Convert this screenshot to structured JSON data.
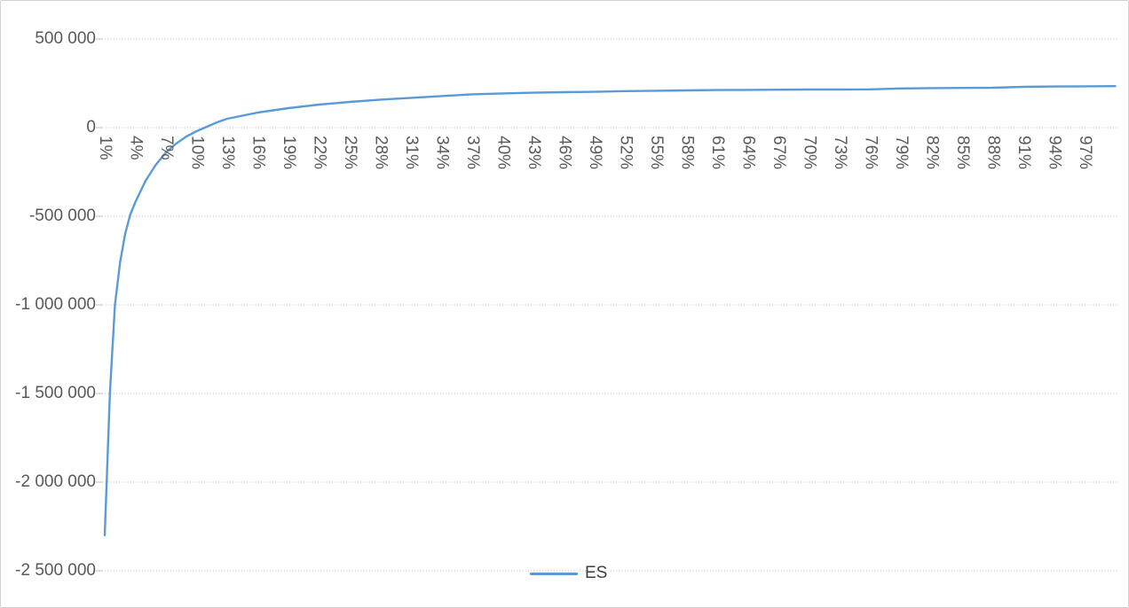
{
  "chart_style": {
    "background_color": "#ffffff",
    "border_color": "#d2d2d2",
    "grid_color": "#bdbdbd",
    "axis_text_color": "#595959",
    "legend_text_color": "#3f3f3f"
  },
  "legend": {
    "series_label": "ES"
  },
  "chart_data": {
    "type": "line",
    "title": "",
    "xlabel": "",
    "ylabel": "",
    "grid": "horizontal-dotted",
    "legend_position": "bottom-center",
    "ylim": [
      -2500000,
      500000
    ],
    "y_ticks": [
      {
        "label": "500 000",
        "value": 500000
      },
      {
        "label": "0",
        "value": 0
      },
      {
        "label": "-500 000",
        "value": -500000
      },
      {
        "label": "-1 000 000",
        "value": -1000000
      },
      {
        "label": "-1 500 000",
        "value": -1500000
      },
      {
        "label": "-2 000 000",
        "value": -2000000
      },
      {
        "label": "-2 500 000",
        "value": -2500000
      }
    ],
    "x_tick_labels": [
      "1%",
      "4%",
      "7%",
      "10%",
      "13%",
      "16%",
      "19%",
      "22%",
      "25%",
      "28%",
      "31%",
      "34%",
      "37%",
      "40%",
      "43%",
      "46%",
      "49%",
      "52%",
      "55%",
      "58%",
      "61%",
      "64%",
      "67%",
      "70%",
      "73%",
      "76%",
      "79%",
      "82%",
      "85%",
      "88%",
      "91%",
      "94%",
      "97%"
    ],
    "x_range_percent": [
      1,
      100
    ],
    "series": [
      {
        "name": "ES",
        "color": "#5B9BD5",
        "x_percent": [
          1,
          1.5,
          2,
          2.5,
          3,
          3.5,
          4,
          5,
          6,
          7,
          8,
          9,
          10,
          11,
          12,
          13,
          16,
          19,
          22,
          25,
          28,
          31,
          34,
          37,
          40,
          43,
          46,
          49,
          52,
          55,
          58,
          61,
          64,
          67,
          70,
          73,
          76,
          79,
          82,
          85,
          88,
          91,
          94,
          97,
          100
        ],
        "values": [
          -2300000,
          -1500000,
          -1000000,
          -760000,
          -600000,
          -490000,
          -420000,
          -300000,
          -210000,
          -140000,
          -90000,
          -50000,
          -20000,
          5000,
          30000,
          50000,
          85000,
          110000,
          130000,
          145000,
          158000,
          168000,
          178000,
          188000,
          193000,
          197000,
          200000,
          202000,
          206000,
          208000,
          210000,
          212000,
          213000,
          214000,
          215000,
          215000,
          216000,
          221000,
          223000,
          224000,
          225000,
          230000,
          232000,
          233000,
          234000
        ]
      }
    ]
  }
}
